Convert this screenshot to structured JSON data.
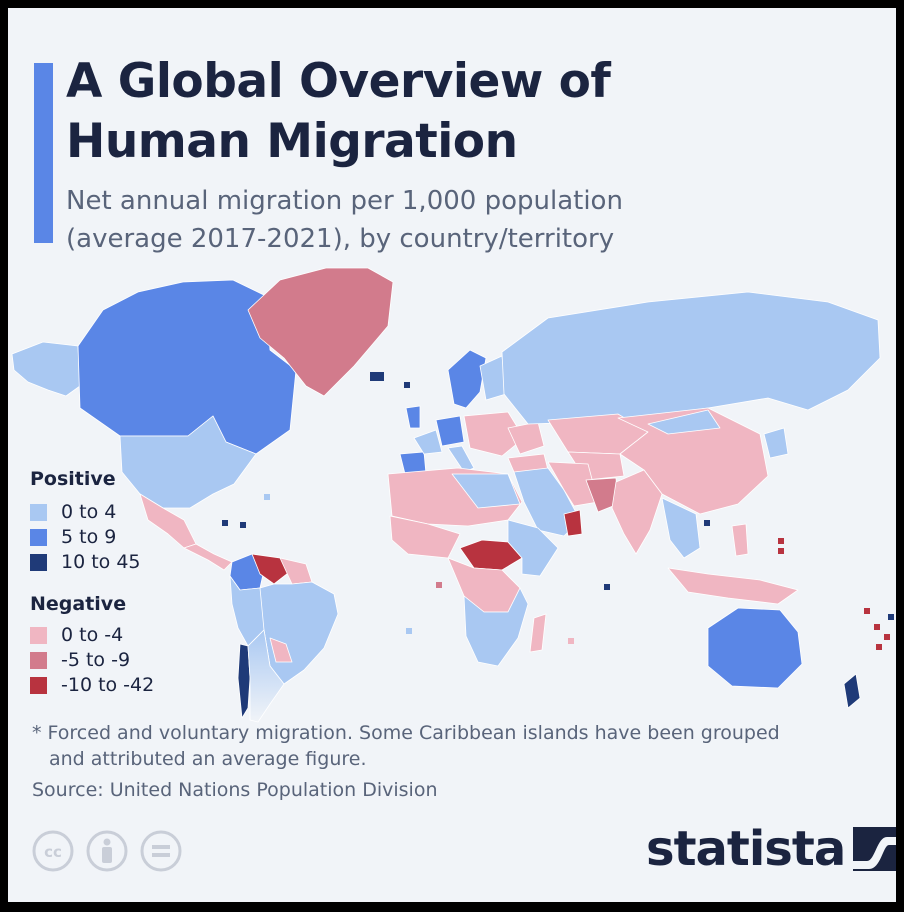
{
  "header": {
    "title_line1": "A Global Overview of",
    "title_line2": "Human Migration",
    "subtitle_line1": "Net annual migration per 1,000 population",
    "subtitle_line2": "(average 2017-2021), by country/territory"
  },
  "legend": {
    "positive_heading": "Positive",
    "negative_heading": "Negative",
    "positive": [
      {
        "label": "0 to 4",
        "color": "#a9c8f2"
      },
      {
        "label": "5 to 9",
        "color": "#5a86e6"
      },
      {
        "label": "10 to 45",
        "color": "#1f3a78"
      }
    ],
    "negative": [
      {
        "label": "0 to -4",
        "color": "#f0b6c2"
      },
      {
        "label": "-5 to -9",
        "color": "#d27b8c"
      },
      {
        "label": "-10 to -42",
        "color": "#b8333f"
      }
    ]
  },
  "footer": {
    "footnote_line1": "* Forced and voluntary migration. Some Caribbean islands have been grouped",
    "footnote_line2": "and attributed an average figure.",
    "source": "Source: United Nations Population Division",
    "brand": "statista"
  },
  "icons": {
    "cc": "creative-commons-icon",
    "by": "attribution-icon",
    "nd": "no-derivatives-icon"
  }
}
